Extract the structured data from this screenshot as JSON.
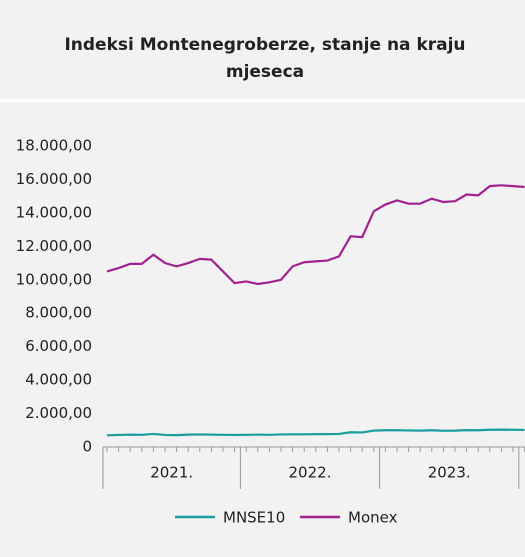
{
  "chart_data": {
    "type": "line",
    "title": [
      "Indeksi Montenegroberze, stanje na kraju",
      "mjeseca"
    ],
    "categories": [
      null,
      null,
      null,
      null,
      null,
      null,
      null,
      null,
      null,
      null,
      null,
      null,
      null,
      null,
      null,
      null,
      null,
      null,
      null,
      null,
      null,
      null,
      null,
      null,
      null,
      null,
      null,
      null,
      null,
      null,
      null,
      null,
      null,
      null,
      null,
      null,
      null
    ],
    "x_groups": [
      {
        "label": "2021.",
        "count": 12
      },
      {
        "label": "2022.",
        "count": 12
      },
      {
        "label": "2023.",
        "count": 12
      }
    ],
    "series": [
      {
        "name": "MNSE10",
        "color": "#1a9e9e",
        "values": [
          700,
          720,
          740,
          730,
          780,
          720,
          710,
          740,
          750,
          740,
          730,
          720,
          730,
          740,
          730,
          750,
          760,
          760,
          770,
          770,
          780,
          880,
          870,
          980,
          1000,
          1000,
          990,
          980,
          1000,
          970,
          980,
          1010,
          1000,
          1030,
          1040,
          1030,
          1020
        ]
      },
      {
        "name": "Monex",
        "color": "#a0218f",
        "values": [
          10500,
          10700,
          10950,
          10950,
          11500,
          11000,
          10800,
          11000,
          11250,
          11200,
          10500,
          9800,
          9900,
          9750,
          9850,
          10000,
          10800,
          11050,
          11100,
          11150,
          11400,
          12600,
          12550,
          14100,
          14500,
          14750,
          14550,
          14550,
          14850,
          14650,
          14700,
          15100,
          15050,
          15600,
          15650,
          15600,
          15550
        ]
      }
    ],
    "ylim": [
      0,
      18000
    ],
    "yticks": [
      0,
      {
        "value": 2000,
        "label": "2.000,00"
      },
      {
        "value": 4000,
        "label": "4.000,00"
      },
      {
        "value": 6000,
        "label": "6.000,00"
      },
      {
        "value": 8000,
        "label": "8.000,00"
      },
      {
        "value": 10000,
        "label": "10.000,00"
      },
      {
        "value": 12000,
        "label": "12.000,00"
      },
      {
        "value": 14000,
        "label": "14.000,00"
      },
      {
        "value": 16000,
        "label": "16.000,00"
      },
      {
        "value": 18000,
        "label": "18.000,00"
      }
    ],
    "grid": false,
    "legend": "bottom"
  }
}
